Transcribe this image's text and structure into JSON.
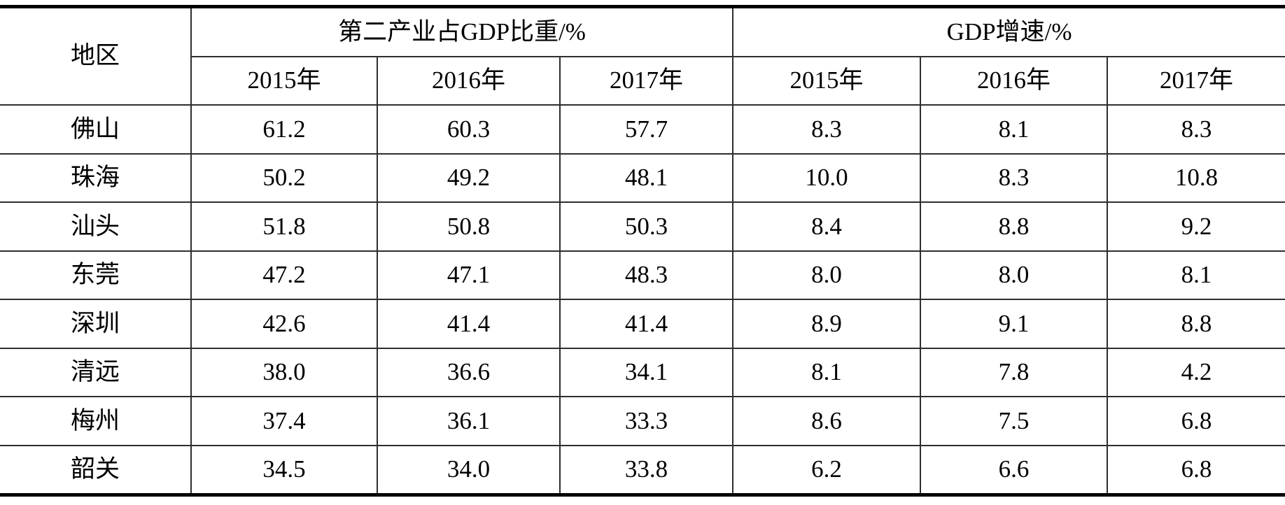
{
  "table": {
    "region_header": "地区",
    "group_headers": [
      {
        "label": "第二产业占GDP比重/%"
      },
      {
        "label": "GDP增速/%"
      }
    ],
    "year_headers": [
      "2015年",
      "2016年",
      "2017年",
      "2015年",
      "2016年",
      "2017年"
    ],
    "rows": [
      {
        "region": "佛山",
        "values": [
          "61.2",
          "60.3",
          "57.7",
          "8.3",
          "8.1",
          "8.3"
        ]
      },
      {
        "region": "珠海",
        "values": [
          "50.2",
          "49.2",
          "48.1",
          "10.0",
          "8.3",
          "10.8"
        ]
      },
      {
        "region": "汕头",
        "values": [
          "51.8",
          "50.8",
          "50.3",
          "8.4",
          "8.8",
          "9.2"
        ]
      },
      {
        "region": "东莞",
        "values": [
          "47.2",
          "47.1",
          "48.3",
          "8.0",
          "8.0",
          "8.1"
        ]
      },
      {
        "region": "深圳",
        "values": [
          "42.6",
          "41.4",
          "41.4",
          "8.9",
          "9.1",
          "8.8"
        ]
      },
      {
        "region": "清远",
        "values": [
          "38.0",
          "36.6",
          "34.1",
          "8.1",
          "7.8",
          "4.2"
        ]
      },
      {
        "region": "梅州",
        "values": [
          "37.4",
          "36.1",
          "33.3",
          "8.6",
          "7.5",
          "6.8"
        ]
      },
      {
        "region": "韶关",
        "values": [
          "34.5",
          "34.0",
          "33.8",
          "6.2",
          "6.6",
          "6.8"
        ]
      }
    ]
  },
  "chart_data": {
    "type": "table",
    "region_column": "地区",
    "column_groups": [
      {
        "label": "第二产业占GDP比重/%",
        "years": [
          "2015年",
          "2016年",
          "2017年"
        ]
      },
      {
        "label": "GDP增速/%",
        "years": [
          "2015年",
          "2016年",
          "2017年"
        ]
      }
    ],
    "regions": [
      "佛山",
      "珠海",
      "汕头",
      "东莞",
      "深圳",
      "清远",
      "梅州",
      "韶关"
    ],
    "series": [
      {
        "name": "第二产业占GDP比重/% 2015年",
        "values": [
          61.2,
          50.2,
          51.8,
          47.2,
          42.6,
          38.0,
          37.4,
          34.5
        ]
      },
      {
        "name": "第二产业占GDP比重/% 2016年",
        "values": [
          60.3,
          49.2,
          50.8,
          47.1,
          41.4,
          36.6,
          36.1,
          34.0
        ]
      },
      {
        "name": "第二产业占GDP比重/% 2017年",
        "values": [
          57.7,
          48.1,
          50.3,
          48.3,
          41.4,
          34.1,
          33.3,
          33.8
        ]
      },
      {
        "name": "GDP增速/% 2015年",
        "values": [
          8.3,
          10.0,
          8.4,
          8.0,
          8.9,
          8.1,
          8.6,
          6.2
        ]
      },
      {
        "name": "GDP增速/% 2016年",
        "values": [
          8.1,
          8.3,
          8.8,
          8.0,
          9.1,
          7.8,
          7.5,
          6.6
        ]
      },
      {
        "name": "GDP增速/% 2017年",
        "values": [
          8.3,
          10.8,
          9.2,
          8.1,
          8.8,
          4.2,
          6.8,
          6.8
        ]
      }
    ],
    "layout": {
      "style": "three-line printed table, thick top and bottom rules, no outer side borders",
      "text_color": "#000000",
      "rule_color": "#2e2e2e",
      "background": "#ffffff"
    }
  }
}
